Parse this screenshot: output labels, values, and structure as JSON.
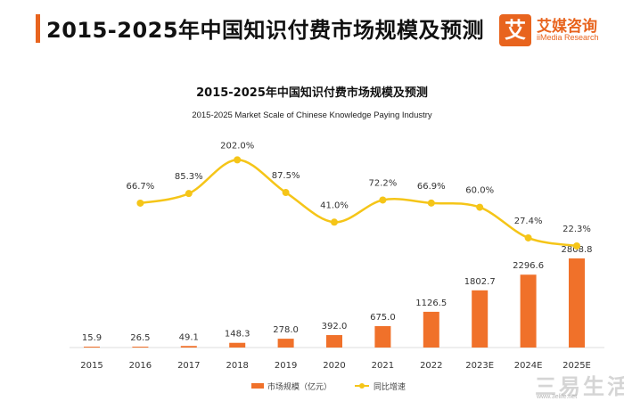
{
  "header": {
    "title": "2015-2025年中国知识付费市场规模及预测"
  },
  "logo": {
    "glyph": "艾",
    "name_cn": "艾媒咨询",
    "name_en": "iiMedia Research"
  },
  "watermark": {
    "text_cn": "三易生活",
    "text_en": "www.3elife.net"
  },
  "colors": {
    "accent": "#e8641e",
    "bar": "#f0712a",
    "line": "#f5c518"
  },
  "chart_data": {
    "type": "bar",
    "title": "2015-2025年中国知识付费市场规模及预测",
    "subtitle": "2015-2025 Market Scale of Chinese Knowledge Paying Industry",
    "categories": [
      "2015",
      "2016",
      "2017",
      "2018",
      "2019",
      "2020",
      "2021",
      "2022",
      "2023E",
      "2024E",
      "2025E"
    ],
    "series": [
      {
        "name": "市场规模（亿元）",
        "kind": "bar",
        "values": [
          15.9,
          26.5,
          49.1,
          148.3,
          278.0,
          392.0,
          675.0,
          1126.5,
          1802.7,
          2296.6,
          2808.8
        ],
        "labels": [
          "15.9",
          "26.5",
          "49.1",
          "148.3",
          "278.0",
          "392.0",
          "675.0",
          "1126.5",
          "1802.7",
          "2296.6",
          "2808.8"
        ]
      },
      {
        "name": "同比增速",
        "kind": "line",
        "values": [
          null,
          66.7,
          85.3,
          202.0,
          87.5,
          41.0,
          72.2,
          66.9,
          60.0,
          27.4,
          22.3
        ],
        "labels": [
          "",
          "66.7%",
          "85.3%",
          "202.0%",
          "87.5%",
          "41.0%",
          "72.2%",
          "66.9%",
          "60.0%",
          "27.4%",
          "22.3%"
        ]
      }
    ],
    "legend": {
      "position": "bottom-center"
    },
    "grid": false
  }
}
